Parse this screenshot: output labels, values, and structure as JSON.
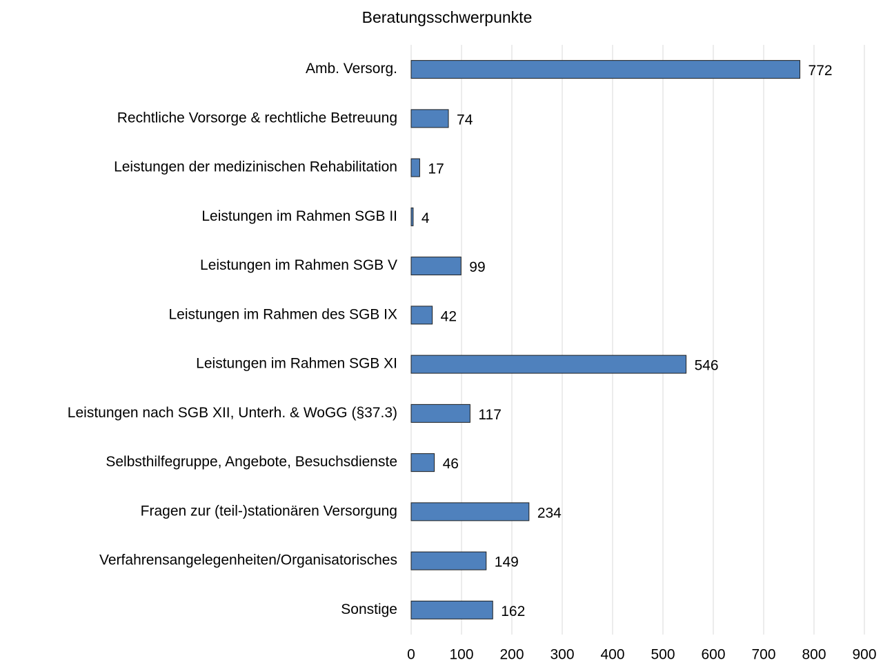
{
  "chart_data": {
    "type": "bar",
    "orientation": "horizontal",
    "title": "Beratungsschwerpunkte",
    "categories": [
      "Amb. Versorg.",
      "Rechtliche Vorsorge & rechtliche Betreuung",
      "Leistungen der medizinischen Rehabilitation",
      "Leistungen im Rahmen SGB II",
      "Leistungen im Rahmen SGB V",
      "Leistungen im Rahmen des SGB IX",
      "Leistungen im Rahmen SGB XI",
      "Leistungen nach SGB XII, Unterh. & WoGG (§37.3)",
      "Selbsthilfegruppe, Angebote, Besuchsdienste",
      "Fragen zur (teil-)stationären Versorgung",
      "Verfahrensangelegenheiten/Organisatorisches",
      "Sonstige"
    ],
    "values": [
      772,
      74,
      17,
      4,
      99,
      42,
      546,
      117,
      46,
      234,
      149,
      162
    ],
    "color": "#4f81bd",
    "xlim": [
      0,
      900
    ],
    "xticks": [
      0,
      100,
      200,
      300,
      400,
      500,
      600,
      700,
      800,
      900
    ],
    "grid": true
  }
}
